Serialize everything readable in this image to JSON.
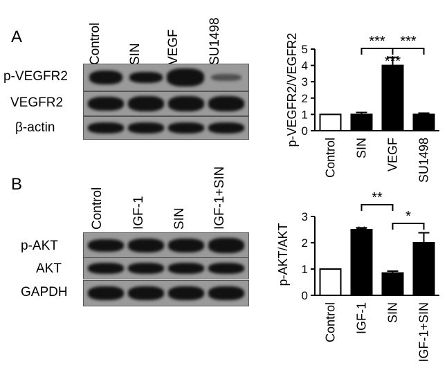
{
  "panel_a": {
    "letter": "A",
    "lanes": [
      "Control",
      "SIN",
      "VEGF",
      "SU1498"
    ],
    "rows": [
      "p-VEGFR2",
      "VEGFR2",
      "β-actin"
    ]
  },
  "panel_b": {
    "letter": "B",
    "lanes": [
      "Control",
      "IGF-1",
      "SIN",
      "IGF-1+SIN"
    ],
    "rows": [
      "p-AKT",
      "AKT",
      "GAPDH"
    ]
  },
  "chart_data": [
    {
      "type": "bar",
      "ylabel": "p-VEGFR2/VEGFR2",
      "categories": [
        "Control",
        "SIN",
        "VEGF",
        "SU1498"
      ],
      "values": [
        1.0,
        1.0,
        4.0,
        1.0
      ],
      "errors": [
        0.0,
        0.12,
        0.5,
        0.08
      ],
      "fills": [
        "#ffffff",
        "#000000",
        "#000000",
        "#000000"
      ],
      "ylim": [
        0,
        5
      ],
      "yticks": [
        0,
        1,
        2,
        3,
        4,
        5
      ],
      "bar_marks": [
        "",
        "",
        "***",
        ""
      ],
      "brackets": [
        {
          "from": 1,
          "to": 2,
          "label": "***"
        },
        {
          "from": 2,
          "to": 3,
          "label": "***"
        }
      ]
    },
    {
      "type": "bar",
      "ylabel": "p-AKT/AKT",
      "categories": [
        "Control",
        "IGF-1",
        "SIN",
        "IGF-1+SIN"
      ],
      "values": [
        1.0,
        2.5,
        0.85,
        2.0
      ],
      "errors": [
        0.0,
        0.07,
        0.07,
        0.38
      ],
      "fills": [
        "#ffffff",
        "#000000",
        "#000000",
        "#000000"
      ],
      "ylim": [
        0,
        3
      ],
      "yticks": [
        0,
        1,
        2,
        3
      ],
      "bar_marks": [
        "",
        "**",
        "",
        ""
      ],
      "brackets": [
        {
          "from": 1,
          "to": 2,
          "label": "**"
        },
        {
          "from": 2,
          "to": 3,
          "label": "*"
        }
      ]
    }
  ]
}
